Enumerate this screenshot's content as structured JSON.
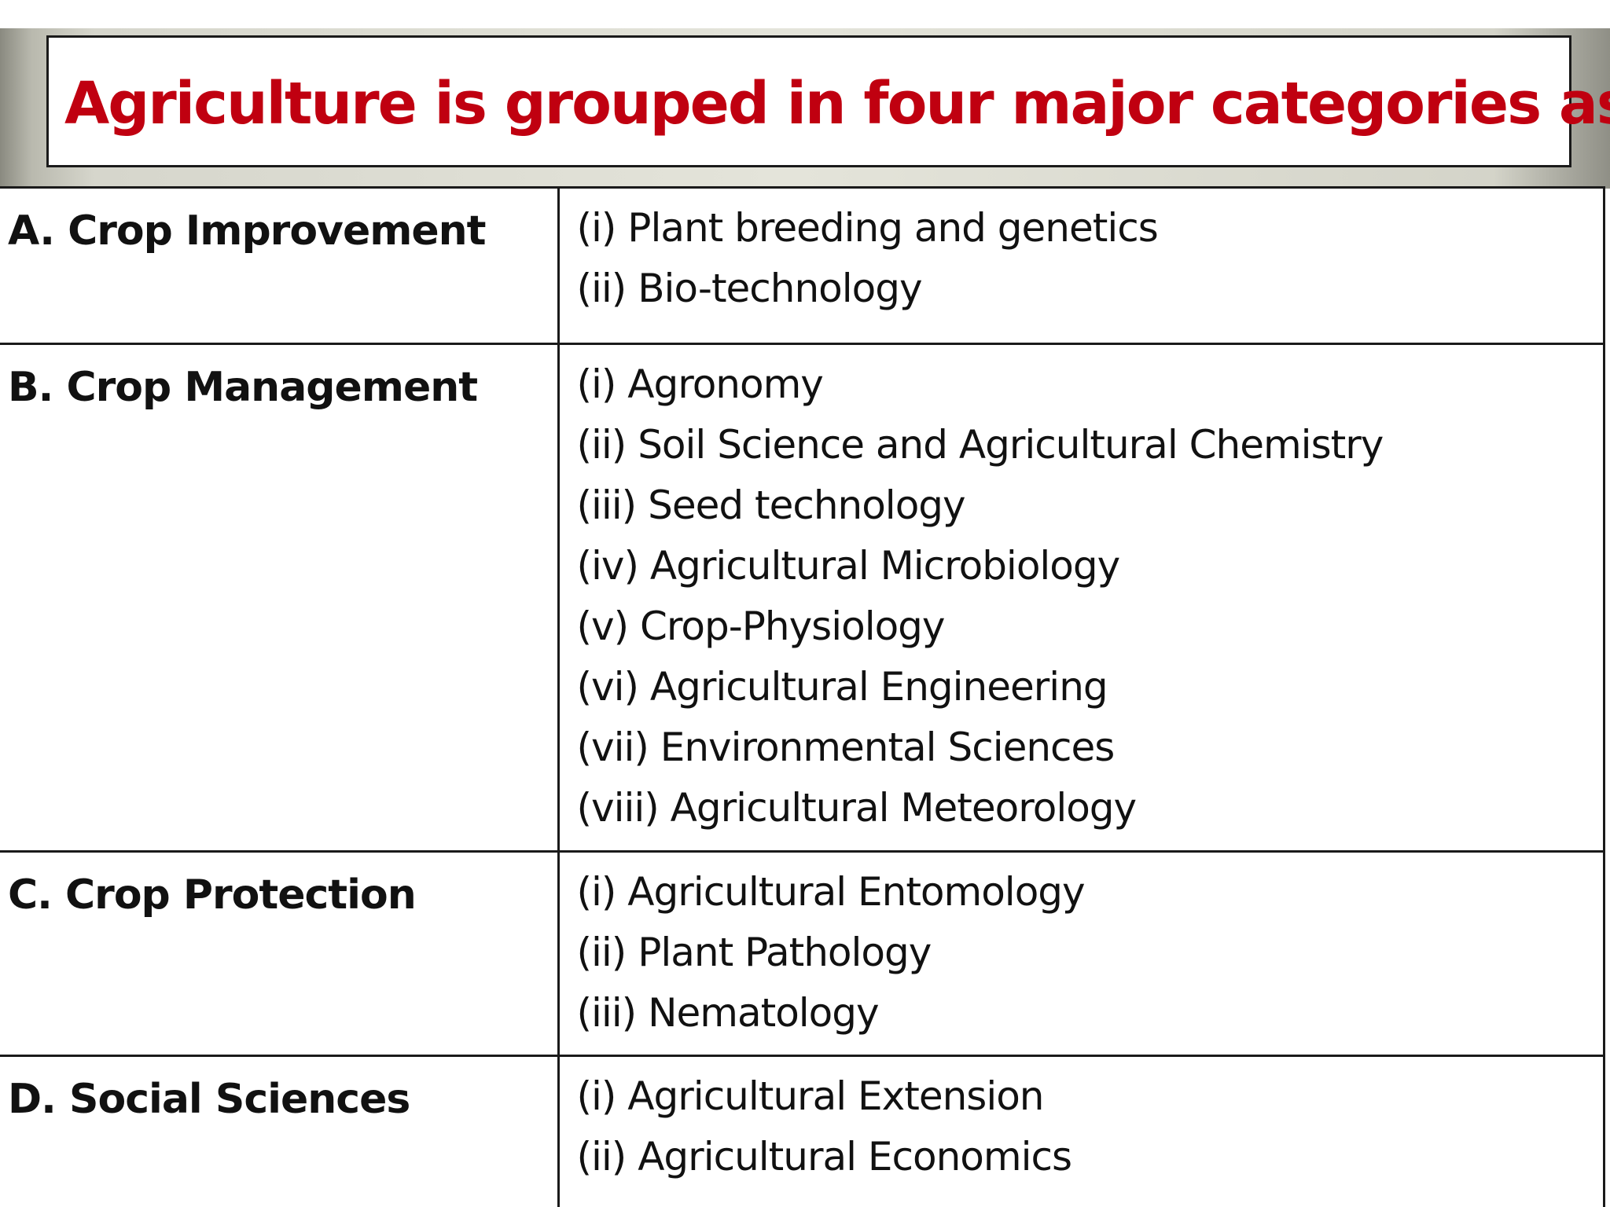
{
  "title": "Agriculture is grouped in four major categories as,",
  "categories": [
    {
      "name": "A. Crop Improvement",
      "subjects": [
        "(i) Plant breeding and genetics",
        "(ii) Bio-technology"
      ]
    },
    {
      "name": "B. Crop Management",
      "subjects": [
        "(i) Agronomy",
        "(ii) Soil Science and Agricultural Chemistry",
        "(iii) Seed technology",
        "(iv) Agricultural Microbiology",
        "(v) Crop-Physiology",
        "(vi) Agricultural Engineering",
        "(vii) Environmental Sciences",
        "(viii) Agricultural Meteorology"
      ]
    },
    {
      "name": "C. Crop Protection",
      "subjects": [
        "(i) Agricultural Entomology",
        "(ii) Plant Pathology",
        "(iii) Nematology"
      ]
    },
    {
      "name": "D. Social Sciences",
      "subjects": [
        "(i) Agricultural Extension",
        "(ii) Agricultural Economics"
      ]
    }
  ],
  "colors": {
    "title": "#c00010",
    "text": "#111111",
    "border": "#1a1a1a"
  }
}
